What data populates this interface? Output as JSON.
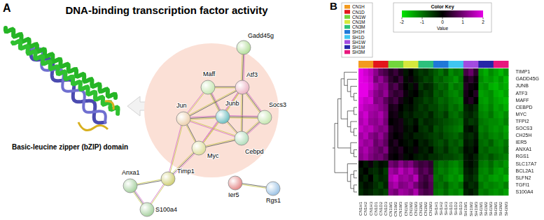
{
  "panel_labels": [
    "A",
    "B"
  ],
  "network": {
    "title": "DNA-binding transcription factor activity",
    "structure_label": "Basic-leucine zipper (bZIP) domain",
    "nodes": [
      {
        "label": "Gadd45g",
        "color": "#a9d98c"
      },
      {
        "label": "Maff",
        "color": "#bfe3a8"
      },
      {
        "label": "Atf3",
        "color": "#e8a9bb"
      },
      {
        "label": "Jun",
        "color": "#e9c9a2"
      },
      {
        "label": "Junb",
        "color": "#5cb7b9"
      },
      {
        "label": "Socs3",
        "color": "#bde2a4"
      },
      {
        "label": "Cebpd",
        "color": "#a9d9b3"
      },
      {
        "label": "Myc",
        "color": "#d9d98f"
      },
      {
        "label": "Ier5",
        "color": "#e07b7b"
      },
      {
        "label": "Rgs1",
        "color": "#8fbbe2"
      },
      {
        "label": "Timp1",
        "color": "#c9c963"
      },
      {
        "label": "Anxa1",
        "color": "#9bcb93"
      },
      {
        "label": "S100a4",
        "color": "#9bcb93"
      }
    ],
    "edges": [
      [
        0,
        2
      ],
      [
        1,
        2
      ],
      [
        1,
        3
      ],
      [
        1,
        4
      ],
      [
        2,
        3
      ],
      [
        2,
        4
      ],
      [
        2,
        5
      ],
      [
        2,
        6
      ],
      [
        2,
        7
      ],
      [
        3,
        4
      ],
      [
        3,
        7
      ],
      [
        3,
        6
      ],
      [
        4,
        5
      ],
      [
        4,
        6
      ],
      [
        4,
        7
      ],
      [
        5,
        6
      ],
      [
        6,
        7
      ],
      [
        3,
        10
      ],
      [
        7,
        10
      ],
      [
        10,
        11
      ],
      [
        10,
        12
      ],
      [
        11,
        12
      ],
      [
        8,
        9
      ]
    ]
  },
  "chart_data": {
    "type": "heatmap",
    "legend": "upper left",
    "groups": [
      {
        "name": "CN1H",
        "color": "#f39a1e"
      },
      {
        "name": "CN1D",
        "color": "#e3161b"
      },
      {
        "name": "CN1W",
        "color": "#72d63c"
      },
      {
        "name": "CN1M",
        "color": "#d6e83c"
      },
      {
        "name": "CN3M",
        "color": "#2cc07c"
      },
      {
        "name": "SH1H",
        "color": "#1f78d8"
      },
      {
        "name": "SH1D",
        "color": "#3fc6f0"
      },
      {
        "name": "SH1W",
        "color": "#a24be0"
      },
      {
        "name": "SH1M",
        "color": "#2626a8"
      },
      {
        "name": "SH3M",
        "color": "#e8177d"
      }
    ],
    "columns": [
      "CN1H1",
      "CN1H2",
      "CN1H3",
      "CN1D1",
      "CN1D2",
      "CN1D3",
      "CN1W1",
      "CN1W2",
      "CN1W3",
      "CN1M1",
      "CN1M2",
      "CN1M3",
      "CN3M1",
      "CN3M2",
      "CN3M3",
      "SH1H1",
      "SH1H2",
      "SH1H3",
      "SH1D1",
      "SH1D2",
      "SH1D3",
      "SH1W1",
      "SH1W2",
      "SH1W3",
      "SH1M1",
      "SH1M2",
      "SH1M3",
      "SH3M1",
      "SH3M2",
      "SH3M3"
    ],
    "column_groups": [
      "CN1H",
      "CN1H",
      "CN1H",
      "CN1D",
      "CN1D",
      "CN1D",
      "CN1W",
      "CN1W",
      "CN1W",
      "CN1M",
      "CN1M",
      "CN1M",
      "CN3M",
      "CN3M",
      "CN3M",
      "SH1H",
      "SH1H",
      "SH1H",
      "SH1D",
      "SH1D",
      "SH1D",
      "SH1W",
      "SH1W",
      "SH1W",
      "SH1M",
      "SH1M",
      "SH1M",
      "SH3M",
      "SH3M",
      "SH3M"
    ],
    "rows": [
      "TIMP1",
      "GADD45G",
      "JUNB",
      "ATF3",
      "MAFF",
      "CEBPD",
      "MYC",
      "TFPI2",
      "SOCS3",
      "CH25H",
      "IER5",
      "ANXA1",
      "RGS1",
      "SLC17A7",
      "BCL2A1",
      "SLFN2",
      "TGFI1",
      "S100A4"
    ],
    "row_tree": [
      [
        [
          [
            0,
            [
              1,
              [
                2,
                [
                  3,
                  4
                ]
              ]
            ]
          ],
          [
            [
              5,
              6
            ],
            [
              7,
              [
                8,
                9
              ]
            ]
          ]
        ],
        [
          10,
          [
            11,
            12
          ]
        ]
      ],
      [
        13,
        [
          [
            14,
            15
          ],
          [
            16,
            17
          ]
        ]
      ]
    ],
    "cells": [
      [
        2.0,
        1.8,
        1.6,
        1.2,
        0.8,
        0.6,
        0.3,
        0.5,
        0.2,
        -0.2,
        0.0,
        -0.3,
        -0.5,
        -0.4,
        -0.6,
        -0.8,
        -1.0,
        -0.7,
        -1.2,
        -1.0,
        -1.1,
        0.6,
        0.9,
        0.4,
        -1.3,
        -1.5,
        -1.2,
        -1.4,
        -1.6,
        -1.3
      ],
      [
        2.1,
        1.9,
        1.7,
        1.0,
        1.3,
        0.9,
        0.4,
        0.2,
        0.5,
        -0.1,
        0.1,
        -0.2,
        -0.4,
        -0.6,
        -0.5,
        -0.9,
        -0.8,
        -1.0,
        -1.1,
        -1.3,
        -1.0,
        0.2,
        0.4,
        0.1,
        -1.2,
        -1.4,
        -1.3,
        -1.5,
        -1.3,
        -1.6
      ],
      [
        2.2,
        2.0,
        1.8,
        1.4,
        1.1,
        1.2,
        0.5,
        0.7,
        0.3,
        0.0,
        -0.2,
        0.1,
        -0.5,
        -0.3,
        -0.4,
        -0.7,
        -0.9,
        -0.8,
        -1.2,
        -1.0,
        -1.1,
        0.3,
        0.1,
        0.0,
        -1.3,
        -1.2,
        -1.5,
        -1.6,
        -1.4,
        -1.5
      ],
      [
        2.0,
        2.1,
        1.6,
        1.2,
        1.0,
        1.3,
        0.6,
        0.4,
        0.5,
        0.1,
        -0.1,
        0.0,
        -0.3,
        -0.5,
        -0.4,
        -0.8,
        -0.7,
        -0.9,
        -1.1,
        -1.2,
        -1.0,
        0.2,
        0.0,
        0.3,
        -1.4,
        -1.3,
        -1.2,
        -1.5,
        -1.6,
        -1.4
      ],
      [
        1.9,
        1.7,
        1.8,
        1.1,
        1.2,
        0.8,
        0.4,
        0.6,
        0.2,
        -0.1,
        0.0,
        -0.3,
        -0.4,
        -0.6,
        -0.5,
        -0.7,
        -0.9,
        -0.8,
        -1.0,
        -1.1,
        -1.2,
        0.1,
        0.3,
        0.0,
        -1.3,
        -1.4,
        -1.2,
        -1.4,
        -1.5,
        -1.6
      ],
      [
        1.8,
        1.6,
        1.5,
        1.4,
        1.2,
        1.0,
        0.2,
        0.3,
        0.0,
        -0.2,
        -0.1,
        -0.3,
        -0.5,
        -0.4,
        -0.6,
        -0.6,
        -0.8,
        -0.7,
        -1.0,
        -0.9,
        -1.1,
        -0.3,
        -0.2,
        -0.4,
        -1.2,
        -1.3,
        -1.1,
        -1.4,
        -1.3,
        -1.5
      ],
      [
        1.6,
        1.8,
        1.4,
        1.3,
        1.5,
        1.1,
        0.1,
        0.2,
        -0.1,
        -0.3,
        -0.2,
        -0.4,
        -0.4,
        -0.5,
        -0.3,
        -0.6,
        -0.7,
        -0.5,
        -0.9,
        -1.0,
        -0.8,
        -0.4,
        -0.3,
        -0.5,
        -1.1,
        -1.2,
        -1.0,
        -1.3,
        -1.4,
        -1.2
      ],
      [
        1.5,
        1.7,
        1.3,
        1.2,
        1.4,
        1.0,
        0.0,
        0.1,
        0.2,
        -0.2,
        -0.3,
        -0.1,
        -0.5,
        -0.3,
        -0.4,
        -0.5,
        -0.6,
        -0.7,
        -0.8,
        -0.9,
        -1.0,
        -0.3,
        -0.5,
        -0.4,
        -1.0,
        -1.1,
        -1.2,
        -1.2,
        -1.3,
        -1.1
      ],
      [
        1.7,
        1.5,
        1.6,
        1.3,
        1.1,
        1.2,
        0.3,
        0.1,
        0.2,
        -0.1,
        -0.2,
        0.0,
        -0.4,
        -0.5,
        -0.3,
        -0.7,
        -0.6,
        -0.8,
        -0.9,
        -1.0,
        -1.1,
        -0.2,
        -0.1,
        -0.3,
        -1.1,
        -1.0,
        -1.2,
        -1.3,
        -1.2,
        -1.4
      ],
      [
        1.4,
        1.6,
        1.2,
        1.0,
        1.3,
        0.9,
        0.2,
        0.0,
        0.1,
        -0.2,
        -0.1,
        -0.3,
        -0.3,
        -0.4,
        -0.5,
        -0.6,
        -0.5,
        -0.7,
        -0.8,
        -0.9,
        -0.7,
        -0.3,
        -0.4,
        -0.2,
        -1.0,
        -0.9,
        -1.1,
        -1.2,
        -1.1,
        -1.3
      ],
      [
        1.5,
        1.3,
        1.4,
        0.9,
        1.1,
        0.8,
        0.1,
        0.3,
        0.0,
        -0.1,
        -0.2,
        0.0,
        -0.3,
        -0.2,
        -0.4,
        -0.6,
        -0.7,
        -0.5,
        -0.8,
        -0.7,
        -0.9,
        -0.2,
        -0.3,
        -0.1,
        -0.9,
        -1.0,
        -0.8,
        -1.1,
        -1.2,
        -1.0
      ],
      [
        1.3,
        1.5,
        1.2,
        1.0,
        0.8,
        1.1,
        0.2,
        0.1,
        0.3,
        0.0,
        -0.1,
        0.1,
        -0.2,
        -0.3,
        -0.1,
        -0.5,
        -0.6,
        -0.4,
        -0.7,
        -0.8,
        -0.6,
        -0.1,
        -0.2,
        0.0,
        -0.9,
        -0.8,
        -1.0,
        -1.0,
        -1.1,
        -0.9
      ],
      [
        1.2,
        1.4,
        1.1,
        0.9,
        1.0,
        0.7,
        0.1,
        0.0,
        0.2,
        -0.1,
        0.0,
        -0.2,
        -0.3,
        -0.2,
        -0.4,
        -0.4,
        -0.5,
        -0.6,
        -0.6,
        -0.7,
        -0.8,
        -0.2,
        -0.1,
        -0.3,
        -0.8,
        -0.9,
        -0.7,
        -0.9,
        -1.0,
        -1.1
      ],
      [
        0.0,
        -0.2,
        0.1,
        -0.3,
        -0.1,
        -0.2,
        1.0,
        0.8,
        1.2,
        0.9,
        1.1,
        0.7,
        0.5,
        0.6,
        0.4,
        -0.8,
        -1.0,
        -0.9,
        -1.1,
        -1.2,
        -1.0,
        -0.2,
        -0.1,
        -0.3,
        -1.0,
        -1.1,
        -0.9,
        -1.2,
        -1.1,
        -1.3
      ],
      [
        -0.2,
        0.0,
        -0.3,
        -0.4,
        -0.2,
        -0.5,
        1.4,
        1.2,
        1.6,
        1.3,
        1.5,
        1.1,
        0.6,
        0.8,
        0.5,
        -0.9,
        -1.1,
        -1.0,
        -1.2,
        -1.3,
        -1.1,
        -0.3,
        -0.2,
        -0.4,
        -1.1,
        -1.2,
        -1.0,
        -1.3,
        -1.4,
        -1.2
      ],
      [
        -0.1,
        -0.3,
        0.0,
        -0.5,
        -0.3,
        -0.4,
        1.5,
        1.7,
        1.3,
        1.4,
        1.2,
        1.6,
        0.7,
        0.5,
        0.8,
        -1.0,
        -0.9,
        -1.1,
        -1.3,
        -1.2,
        -1.4,
        -0.4,
        -0.3,
        -0.5,
        -1.2,
        -1.1,
        -1.3,
        -1.4,
        -1.3,
        -1.5
      ],
      [
        -0.3,
        -0.1,
        -0.2,
        -0.4,
        -0.6,
        -0.3,
        1.3,
        1.5,
        1.1,
        1.2,
        1.4,
        1.0,
        0.6,
        0.4,
        0.7,
        -0.9,
        -1.0,
        -0.8,
        -1.1,
        -1.2,
        -1.0,
        -0.2,
        -0.4,
        -0.3,
        -1.0,
        -1.2,
        -1.1,
        -1.2,
        -1.3,
        -1.1
      ],
      [
        -0.4,
        -0.2,
        -0.3,
        -0.5,
        -0.4,
        -0.6,
        1.2,
        1.0,
        1.4,
        1.3,
        1.1,
        1.5,
        0.8,
        0.6,
        0.7,
        -1.0,
        -1.1,
        -0.9,
        -1.2,
        -1.1,
        -1.3,
        -0.3,
        -0.2,
        -0.4,
        -1.1,
        -1.0,
        -1.2,
        -1.3,
        -1.2,
        -1.4
      ]
    ],
    "colorbar": {
      "title": "Color Key",
      "label": "Value",
      "range": [
        -2,
        2
      ],
      "ticks": [
        -2,
        -1,
        0,
        1,
        2
      ],
      "colors": [
        "#00e600",
        "#000000",
        "#e600e6"
      ]
    }
  }
}
